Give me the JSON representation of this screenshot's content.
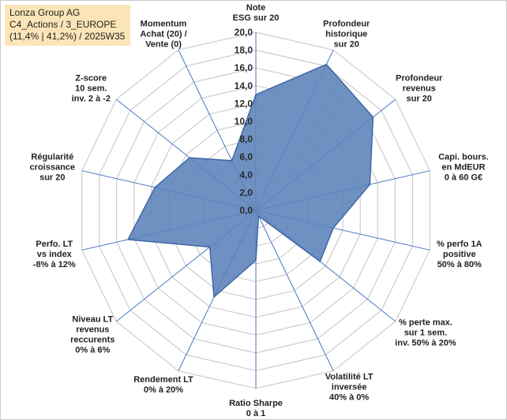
{
  "header": {
    "line1": "Lonza Group AG",
    "line2": "C4_Actions / 3_EUROPE",
    "line3": "(11,4% | 41,2%) / 2025W35"
  },
  "colors": {
    "fill": "#5b82ba",
    "stroke": "#3f67a6",
    "spoke": "#4a78c2",
    "ring": "#c4c4c4",
    "header_bg": "#fbe5b8"
  },
  "chart_data": {
    "type": "radar",
    "rmin": 0,
    "rmax": 20,
    "tick_step": 2,
    "tick_labels": [
      "0,0",
      "2,0",
      "4,0",
      "6,0",
      "8,0",
      "10,0",
      "12,0",
      "14,0",
      "16,0",
      "18,0",
      "20,0"
    ],
    "axes": [
      {
        "label": [
          "Note",
          "ESG sur 20"
        ],
        "value": 13.0
      },
      {
        "label": [
          "Profondeur",
          "historique",
          "sur 20"
        ],
        "value": 18.2
      },
      {
        "label": [
          "Profondeur",
          "revenus",
          "sur 20"
        ],
        "value": 16.8
      },
      {
        "label": [
          "Capi. bours.",
          "en MdEUR",
          "0 à 60 G€"
        ],
        "value": 13.1
      },
      {
        "label": [
          "% perfo 1A",
          "positive",
          "50% à 80%"
        ],
        "value": 8.9
      },
      {
        "label": [
          "% perte max.",
          "sur 1 sem.",
          "inv. 50% à 20%"
        ],
        "value": 9.2
      },
      {
        "label": [
          "Volatilité LT",
          "inversée",
          "40% à 0%"
        ],
        "value": 0.7
      },
      {
        "label": [
          "Ratio Sharpe",
          "0 à 1"
        ],
        "value": 5.6
      },
      {
        "label": [
          "Rendement LT",
          "0% à 20%"
        ],
        "value": 10.8
      },
      {
        "label": [
          "Niveau LT",
          "revenus",
          "reccurents",
          "0% à 6%"
        ],
        "value": 6.6
      },
      {
        "label": [
          "Perfo. LT",
          "vs index",
          "-8% à 12%"
        ],
        "value": 14.7
      },
      {
        "label": [
          "Régularité",
          "croissance",
          "sur 20"
        ],
        "value": 11.6
      },
      {
        "label": [
          "Z-score",
          "10 sem.",
          "inv. 2 à -2"
        ],
        "value": 9.5
      },
      {
        "label": [
          "Momentum",
          "Achat (20) /",
          "Vente (0)"
        ],
        "value": 6.2
      }
    ]
  }
}
